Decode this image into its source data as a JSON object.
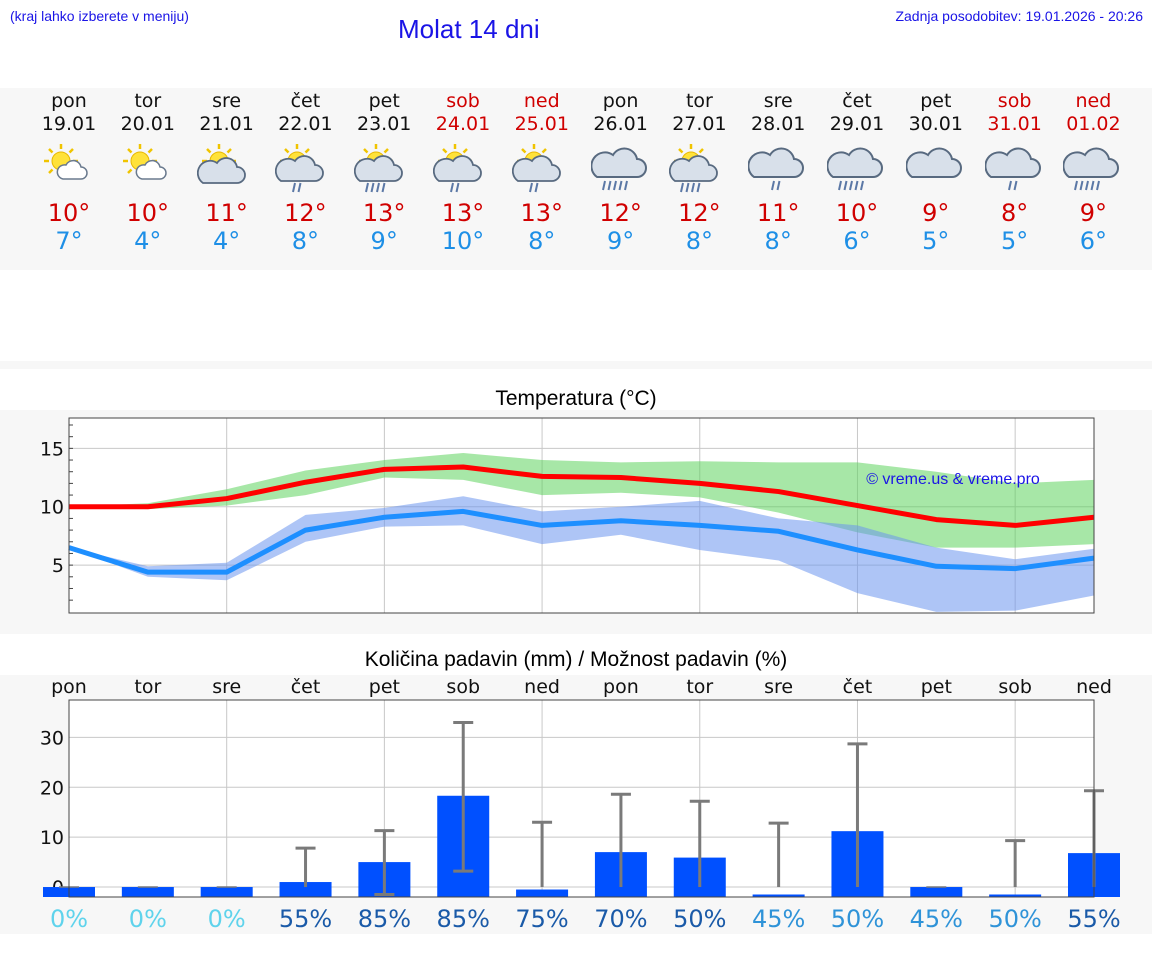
{
  "header": {
    "hint": "(kraj lahko izberete v meniju)",
    "title": "Molat 14 dni",
    "updated": "Zadnja posodobitev: 19.01.2026 - 20:26"
  },
  "colors": {
    "link_blue": "#1a14e6",
    "max_red": "#d00000",
    "min_blue": "#1e8fe6",
    "bar_blue": "#0050ff"
  },
  "days": [
    {
      "name": "pon",
      "date": "19.01",
      "weekend": false,
      "icon": "sun-cloud-icon",
      "tmax": "10°",
      "tmin": "7°"
    },
    {
      "name": "tor",
      "date": "20.01",
      "weekend": false,
      "icon": "sun-cloud-icon",
      "tmax": "10°",
      "tmin": "4°"
    },
    {
      "name": "sre",
      "date": "21.01",
      "weekend": false,
      "icon": "sun-cloud-big-icon",
      "tmax": "11°",
      "tmin": "4°"
    },
    {
      "name": "čet",
      "date": "22.01",
      "weekend": false,
      "icon": "sun-cloud-rain-icon",
      "tmax": "12°",
      "tmin": "8°"
    },
    {
      "name": "pet",
      "date": "23.01",
      "weekend": false,
      "icon": "sun-cloud-heavy-rain-icon",
      "tmax": "13°",
      "tmin": "9°"
    },
    {
      "name": "sob",
      "date": "24.01",
      "weekend": true,
      "icon": "sun-cloud-rain-icon",
      "tmax": "13°",
      "tmin": "10°"
    },
    {
      "name": "ned",
      "date": "25.01",
      "weekend": true,
      "icon": "sun-cloud-rain-icon",
      "tmax": "13°",
      "tmin": "8°"
    },
    {
      "name": "pon",
      "date": "26.01",
      "weekend": false,
      "icon": "cloud-heavy-rain-icon",
      "tmax": "12°",
      "tmin": "9°"
    },
    {
      "name": "tor",
      "date": "27.01",
      "weekend": false,
      "icon": "sun-cloud-heavy-rain-icon",
      "tmax": "12°",
      "tmin": "8°"
    },
    {
      "name": "sre",
      "date": "28.01",
      "weekend": false,
      "icon": "cloud-rain-icon",
      "tmax": "11°",
      "tmin": "8°"
    },
    {
      "name": "čet",
      "date": "29.01",
      "weekend": false,
      "icon": "cloud-heavy-rain-icon",
      "tmax": "10°",
      "tmin": "6°"
    },
    {
      "name": "pet",
      "date": "30.01",
      "weekend": false,
      "icon": "cloud-icon",
      "tmax": "9°",
      "tmin": "5°"
    },
    {
      "name": "sob",
      "date": "31.01",
      "weekend": true,
      "icon": "cloud-rain-icon",
      "tmax": "8°",
      "tmin": "5°"
    },
    {
      "name": "ned",
      "date": "01.02",
      "weekend": true,
      "icon": "cloud-heavy-rain-icon",
      "tmax": "9°",
      "tmin": "6°"
    }
  ],
  "chart_data": [
    {
      "type": "line",
      "title": "Temperatura (°C)",
      "watermark": "© vreme.us & vreme.pro",
      "xlabel": "",
      "ylabel": "",
      "ylim": [
        0.9,
        17.6
      ],
      "yticks": [
        5,
        10,
        15
      ],
      "x": [
        0,
        1,
        2,
        3,
        4,
        5,
        6,
        7,
        8,
        9,
        10,
        11,
        12,
        13
      ],
      "series": [
        {
          "name": "max",
          "color": "#ff0000",
          "values": [
            10.0,
            10.0,
            10.7,
            12.1,
            13.2,
            13.4,
            12.6,
            12.5,
            12.0,
            11.3,
            10.1,
            8.9,
            8.4,
            9.1
          ]
        },
        {
          "name": "max-range-low",
          "values": [
            10.0,
            9.8,
            10.1,
            11.0,
            12.5,
            12.3,
            11.0,
            11.2,
            10.8,
            9.5,
            7.8,
            6.5,
            6.5,
            6.8
          ]
        },
        {
          "name": "max-range-high",
          "values": [
            10.0,
            10.3,
            11.5,
            13.1,
            14.0,
            14.6,
            14.0,
            13.8,
            13.9,
            13.8,
            13.8,
            13.0,
            12.0,
            12.3
          ]
        },
        {
          "name": "min",
          "color": "#1e8fff",
          "values": [
            6.5,
            4.4,
            4.4,
            8.0,
            9.1,
            9.6,
            8.4,
            8.8,
            8.4,
            7.9,
            6.3,
            4.9,
            4.7,
            5.6
          ]
        },
        {
          "name": "min-range-low",
          "values": [
            6.5,
            4.0,
            3.7,
            7.0,
            8.3,
            8.4,
            6.8,
            7.6,
            6.3,
            5.4,
            2.6,
            1.0,
            1.1,
            2.4
          ]
        },
        {
          "name": "min-range-high",
          "values": [
            6.5,
            4.9,
            5.2,
            9.3,
            9.9,
            10.9,
            9.6,
            10.0,
            10.5,
            9.0,
            8.4,
            6.5,
            5.5,
            6.4
          ]
        }
      ]
    },
    {
      "type": "bar",
      "title": "Količina padavin (mm) / Možnost padavin (%)",
      "xlabel": "",
      "ylabel": "",
      "ylim": [
        -2,
        37.5
      ],
      "yticks": [
        0,
        10,
        20,
        30
      ],
      "categories": [
        "pon",
        "tor",
        "sre",
        "čet",
        "pet",
        "sob",
        "ned",
        "pon",
        "tor",
        "sre",
        "čet",
        "pet",
        "sob",
        "ned"
      ],
      "values": [
        0,
        0,
        0,
        1.0,
        5.0,
        18.3,
        -0.5,
        7.0,
        5.9,
        -1.5,
        11.2,
        0,
        -1.5,
        6.8
      ],
      "error_high": [
        0,
        0,
        0,
        7.8,
        11.3,
        33.0,
        13.0,
        18.6,
        17.2,
        12.8,
        28.7,
        0,
        9.3,
        19.3
      ],
      "error_low": [
        0,
        0,
        0,
        0,
        -1.5,
        3.2,
        0,
        0,
        0,
        0,
        0,
        0,
        0,
        0
      ],
      "probabilities": [
        {
          "label": "0%",
          "color": "#5fd3ec"
        },
        {
          "label": "0%",
          "color": "#5fd3ec"
        },
        {
          "label": "0%",
          "color": "#5fd3ec"
        },
        {
          "label": "55%",
          "color": "#1a5aa8"
        },
        {
          "label": "85%",
          "color": "#1a5aa8"
        },
        {
          "label": "85%",
          "color": "#1a5aa8"
        },
        {
          "label": "75%",
          "color": "#1a5aa8"
        },
        {
          "label": "70%",
          "color": "#1a5aa8"
        },
        {
          "label": "50%",
          "color": "#1a5aa8"
        },
        {
          "label": "45%",
          "color": "#2f93d8"
        },
        {
          "label": "50%",
          "color": "#2f93d8"
        },
        {
          "label": "45%",
          "color": "#2f93d8"
        },
        {
          "label": "50%",
          "color": "#2f93d8"
        },
        {
          "label": "55%",
          "color": "#1a5aa8"
        }
      ]
    }
  ]
}
